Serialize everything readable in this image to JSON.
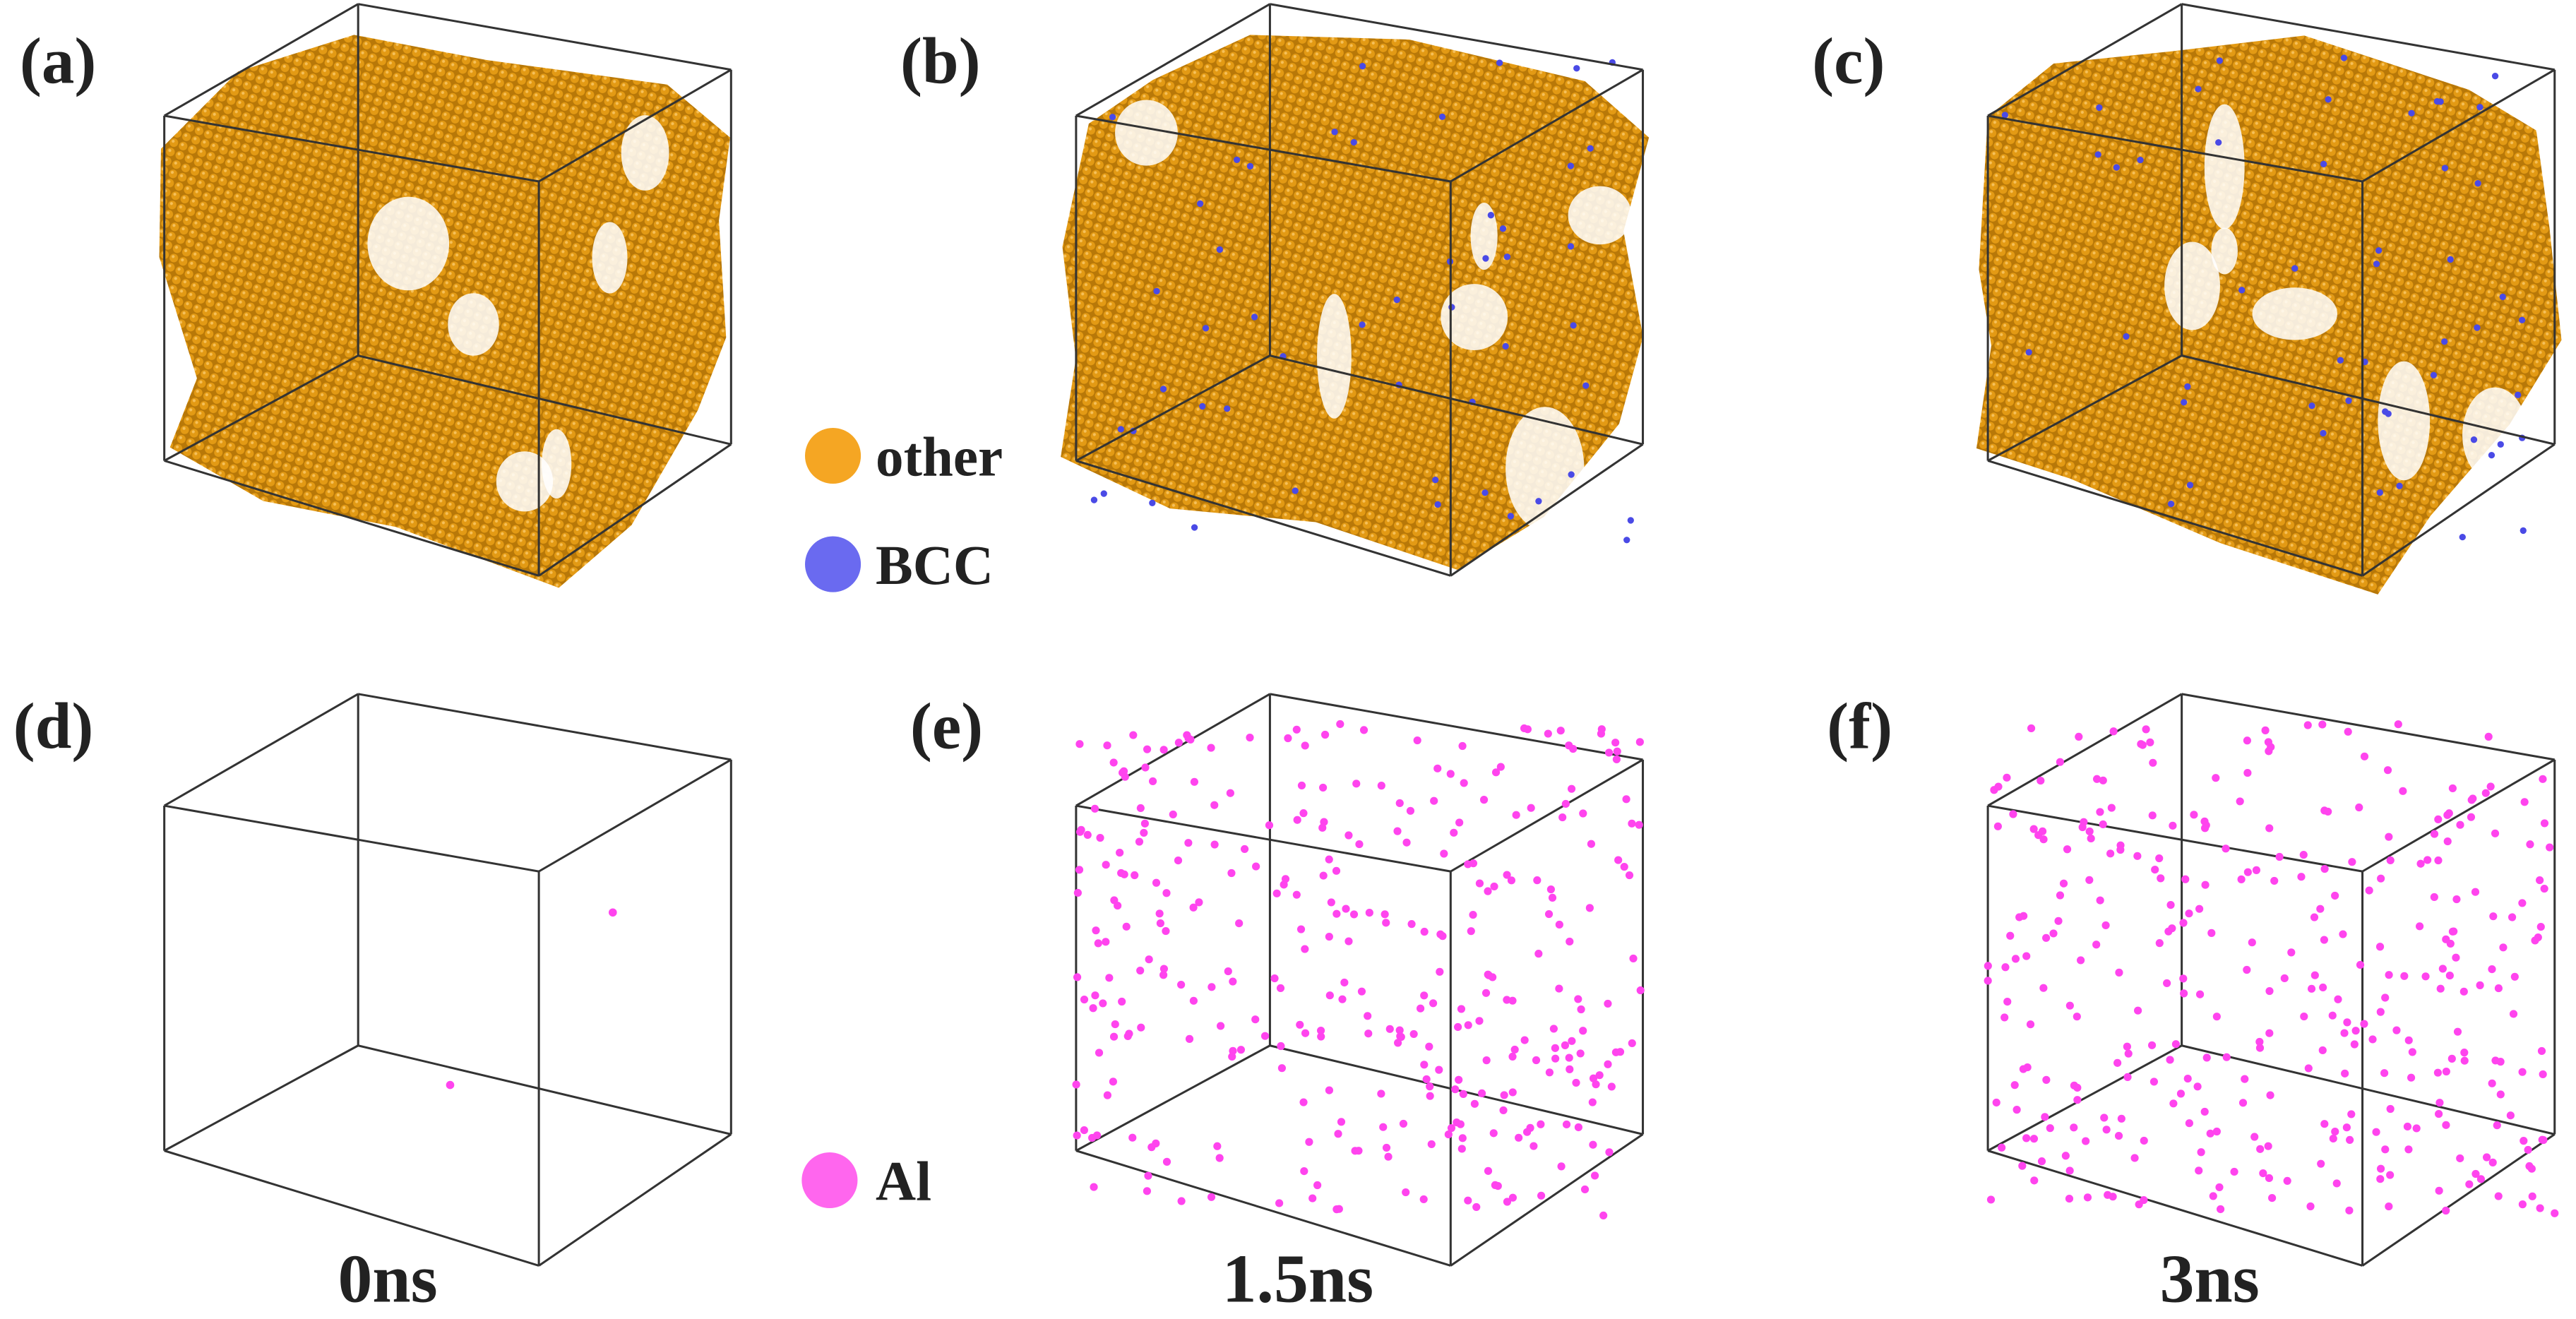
{
  "panels": [
    {
      "label": "(a)"
    },
    {
      "label": "(b)"
    },
    {
      "label": "(c)"
    },
    {
      "label": "(d)",
      "time": "0ns"
    },
    {
      "label": "(e)",
      "time": "1.5ns"
    },
    {
      "label": "(f)",
      "time": "3ns"
    }
  ],
  "legend_top": [
    "other",
    "BCC"
  ],
  "legend_bottom": [
    "Al"
  ]
}
